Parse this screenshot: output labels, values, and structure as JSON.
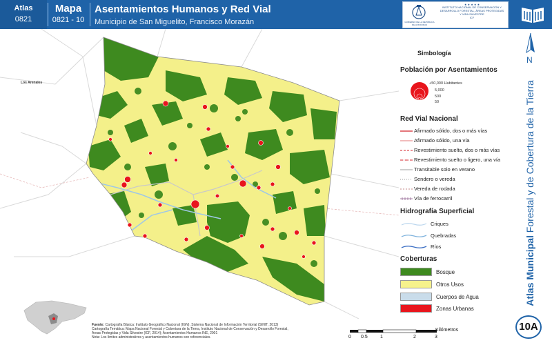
{
  "header": {
    "atlas_label": "Atlas",
    "atlas_code": "0821",
    "map_label": "Mapa",
    "map_code": "0821 - 10",
    "title": "Asentamientos Humanos y Red Vial",
    "subtitle": "Municipio de San Miguelito, Francisco Morazán",
    "seal_text": "GOBIERNO DE LA REPÚBLICA DE HONDURAS",
    "institution_stars": "★ ★ ★ ★ ★",
    "institution_text": "INSTITUTO NACIONAL DE CONSERVACIÓN Y DESARROLLO FORESTAL, ÁREAS PROTEGIDAS Y VIDA SILVESTRE",
    "institution_abbr": "ICF"
  },
  "map": {
    "place_label": "Los Arenales",
    "colors": {
      "bosque": "#3e8a1f",
      "otros_usos": "#f4f08a",
      "urbano": "#e8151c",
      "rio": "#9fc8e6"
    }
  },
  "legend": {
    "title": "Simbología",
    "population": {
      "title": "Población por Asentamientos",
      "classes": [
        "+50,000 Habitantes",
        "5,000",
        "500",
        "50"
      ]
    },
    "roads": {
      "title": "Red Vial Nacional",
      "items": [
        {
          "label": "Afirmado sólido, dos o más vías",
          "color": "#d4232b",
          "style": "solid"
        },
        {
          "label": "Afirmado sólido, una vía",
          "color": "#e57a7a",
          "style": "solid"
        },
        {
          "label": "Revestimiento suelto, dos o más vías",
          "color": "#d4232b",
          "style": "dash"
        },
        {
          "label": "Revestimiento suelto o ligero, una vía",
          "color": "#d4232b",
          "style": "dashdot"
        },
        {
          "label": "Transitable solo en verano",
          "color": "#b0b0b0",
          "style": "solid"
        },
        {
          "label": "Sendero o vereda",
          "color": "#9a9a9a",
          "style": "dot"
        },
        {
          "label": "Vereda de rodada",
          "color": "#c58a8a",
          "style": "dash"
        },
        {
          "label": "Vía de ferrocarril",
          "color": "#8a5a8a",
          "style": "rail"
        }
      ]
    },
    "hydro": {
      "title": "Hidrografía Superficial",
      "items": [
        {
          "label": "Criques",
          "color": "#bcd7ee"
        },
        {
          "label": "Quebradas",
          "color": "#7fb3dd"
        },
        {
          "label": "Ríos",
          "color": "#3c6fc4"
        }
      ]
    },
    "cover": {
      "title": "Coberturas",
      "items": [
        {
          "label": "Bosque",
          "color": "#3e8a1f"
        },
        {
          "label": "Otros Usos",
          "color": "#f6f28c"
        },
        {
          "label": "Cuerpos de Agua",
          "color": "#c9dcea"
        },
        {
          "label": "Zonas Urbanas",
          "color": "#e8151c"
        }
      ]
    }
  },
  "north_label": "N",
  "vertical_title": {
    "bold": "Atlas Municipal",
    "rest": " Forestal y de Cobertura de la Tierra"
  },
  "badge": "10A",
  "footer": {
    "fuente_label": "Fuente:",
    "fuente_lines": [
      "Cartografía Básica: Instituto Geográfico Nacional (IGN), Sistema Nacional de Información Territorial (SINIT, 2013)",
      "Cartografía Temática: Mapa Nacional Forestal y Cobertura de la Tierra, Instituto Nacional de Conservación y Desarrollo Forestal,",
      "Áreas Protegidas y Vida Silvestre (ICF, 2014); Asentamientos Humanos INE, 2001"
    ],
    "nota": "Nota: Los límites administrativos y asentamientos humanos son referenciales."
  },
  "scale": {
    "ticks": [
      "0",
      "0.5",
      "1",
      "2",
      "3"
    ],
    "unit": "Kilómetros"
  }
}
